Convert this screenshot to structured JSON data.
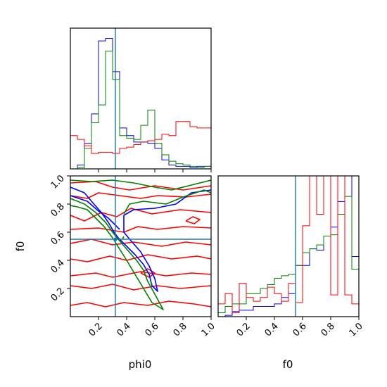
{
  "chart_data": {
    "type": "corner",
    "parameters": [
      "phi0",
      "f0"
    ],
    "axis_labels": {
      "x_left": "phi0",
      "x_right": "f0",
      "y_left": "f0"
    },
    "truths": {
      "phi0": 0.32,
      "f0": 0.55
    },
    "truth_color": "#1f77b4",
    "ticks": {
      "phi0": [
        "0.2",
        "0.4",
        "0.6",
        "0.8",
        "1.0"
      ],
      "f0": [
        "0.2",
        "0.4",
        "0.6",
        "0.8",
        "1.0"
      ]
    },
    "series_colors": [
      "#0000ff",
      "#008000",
      "#ff0000"
    ],
    "hist_phi0": {
      "bins": [
        0.0,
        0.05,
        0.1,
        0.15,
        0.2,
        0.25,
        0.3,
        0.35,
        0.4,
        0.45,
        0.5,
        0.55,
        0.6,
        0.65,
        0.7,
        0.75,
        0.8,
        0.85,
        0.9,
        0.95,
        1.0
      ],
      "series": [
        {
          "color": "#0000ff",
          "values": [
            0.0,
            0.03,
            0.2,
            0.43,
            1.0,
            1.02,
            0.76,
            0.32,
            0.26,
            0.21,
            0.21,
            0.2,
            0.16,
            0.07,
            0.03,
            0.02,
            0.02,
            0.01,
            0.02,
            0.02
          ]
        },
        {
          "color": "#008000",
          "values": [
            0.0,
            0.01,
            0.16,
            0.36,
            0.5,
            0.92,
            0.7,
            0.26,
            0.24,
            0.23,
            0.34,
            0.46,
            0.2,
            0.11,
            0.06,
            0.04,
            0.03,
            0.02,
            0.01,
            0.02
          ]
        },
        {
          "color": "#ff0000",
          "values": [
            0.26,
            0.23,
            0.18,
            0.12,
            0.13,
            0.13,
            0.12,
            0.16,
            0.17,
            0.19,
            0.21,
            0.22,
            0.23,
            0.27,
            0.26,
            0.37,
            0.37,
            0.33,
            0.32,
            0.32
          ]
        }
      ]
    },
    "hist_f0": {
      "bins": [
        0.0,
        0.05,
        0.1,
        0.15,
        0.2,
        0.25,
        0.3,
        0.35,
        0.4,
        0.45,
        0.5,
        0.55,
        0.6,
        0.65,
        0.7,
        0.75,
        0.8,
        0.85,
        0.9,
        0.95,
        1.0
      ],
      "series": [
        {
          "color": "#0000ff",
          "values": [
            0.0,
            0.01,
            0.04,
            0.05,
            0.05,
            0.08,
            0.08,
            0.08,
            0.1,
            0.15,
            0.18,
            0.4,
            0.4,
            0.53,
            0.52,
            0.63,
            0.7,
            0.9,
            1.1,
            0.47
          ]
        },
        {
          "color": "#008000",
          "values": [
            0.03,
            0.08,
            0.1,
            0.1,
            0.18,
            0.18,
            0.22,
            0.25,
            0.3,
            0.32,
            0.33,
            0.4,
            0.5,
            0.53,
            0.56,
            0.63,
            0.64,
            0.8,
            0.94,
            0.37
          ]
        },
        {
          "color": "#ff0000",
          "values": [
            0.1,
            0.18,
            0.03,
            0.26,
            0.15,
            0.12,
            0.15,
            0.23,
            0.18,
            0.12,
            0.26,
            0.11,
            0.71,
            1.1,
            0.8,
            1.2,
            0.17,
            1.2,
            0.17,
            0.1
          ]
        }
      ]
    },
    "scatter_2d": {
      "x": "phi0",
      "y": "f0",
      "xlim": [
        0.0,
        1.0
      ],
      "ylim": [
        0.0,
        1.0
      ],
      "contours": [
        {
          "color": "#ff0000",
          "paths": [
            [
              [
                0.0,
                0.95
              ],
              [
                0.18,
                0.96
              ],
              [
                0.3,
                0.92
              ],
              [
                0.42,
                0.9
              ],
              [
                0.6,
                0.93
              ],
              [
                0.8,
                0.9
              ],
              [
                1.0,
                0.93
              ]
            ],
            [
              [
                0.0,
                0.86
              ],
              [
                0.12,
                0.84
              ],
              [
                0.2,
                0.88
              ],
              [
                0.35,
                0.86
              ],
              [
                0.5,
                0.84
              ],
              [
                0.62,
                0.86
              ],
              [
                0.82,
                0.85
              ],
              [
                1.0,
                0.87
              ]
            ],
            [
              [
                0.0,
                0.72
              ],
              [
                0.1,
                0.68
              ],
              [
                0.22,
                0.74
              ],
              [
                0.33,
                0.71
              ],
              [
                0.43,
                0.77
              ],
              [
                0.58,
                0.73
              ],
              [
                0.78,
                0.76
              ],
              [
                1.0,
                0.74
              ]
            ],
            [
              [
                0.0,
                0.62
              ],
              [
                0.2,
                0.63
              ],
              [
                0.38,
                0.6
              ],
              [
                0.48,
                0.64
              ],
              [
                0.62,
                0.62
              ],
              [
                0.8,
                0.64
              ],
              [
                1.0,
                0.63
              ]
            ],
            [
              [
                0.0,
                0.52
              ],
              [
                0.15,
                0.55
              ],
              [
                0.3,
                0.51
              ],
              [
                0.45,
                0.53
              ],
              [
                0.65,
                0.5
              ],
              [
                0.82,
                0.53
              ],
              [
                1.0,
                0.51
              ]
            ],
            [
              [
                0.0,
                0.41
              ],
              [
                0.12,
                0.39
              ],
              [
                0.28,
                0.43
              ],
              [
                0.4,
                0.4
              ],
              [
                0.55,
                0.44
              ],
              [
                0.72,
                0.41
              ],
              [
                0.9,
                0.43
              ],
              [
                1.0,
                0.41
              ]
            ],
            [
              [
                0.0,
                0.29
              ],
              [
                0.18,
                0.31
              ],
              [
                0.3,
                0.28
              ],
              [
                0.5,
                0.32
              ],
              [
                0.68,
                0.29
              ],
              [
                0.86,
                0.31
              ],
              [
                1.0,
                0.3
              ]
            ],
            [
              [
                0.0,
                0.22
              ],
              [
                0.15,
                0.2
              ],
              [
                0.3,
                0.23
              ],
              [
                0.45,
                0.19
              ],
              [
                0.62,
                0.22
              ],
              [
                0.78,
                0.2
              ],
              [
                1.0,
                0.22
              ]
            ],
            [
              [
                0.0,
                0.08
              ],
              [
                0.12,
                0.1
              ],
              [
                0.25,
                0.07
              ],
              [
                0.38,
                0.1
              ],
              [
                0.55,
                0.08
              ],
              [
                0.7,
                0.11
              ],
              [
                0.88,
                0.09
              ],
              [
                1.0,
                0.07
              ]
            ],
            [
              [
                0.5,
                0.31
              ],
              [
                0.56,
                0.28
              ],
              [
                0.6,
                0.31
              ],
              [
                0.55,
                0.34
              ],
              [
                0.5,
                0.31
              ]
            ],
            [
              [
                0.82,
                0.68
              ],
              [
                0.88,
                0.66
              ],
              [
                0.92,
                0.69
              ],
              [
                0.87,
                0.71
              ],
              [
                0.82,
                0.68
              ]
            ]
          ]
        },
        {
          "color": "#0000ff",
          "paths": [
            [
              [
                0.0,
                0.92
              ],
              [
                0.1,
                0.88
              ],
              [
                0.15,
                0.82
              ],
              [
                0.22,
                0.74
              ],
              [
                0.27,
                0.67
              ],
              [
                0.31,
                0.6
              ],
              [
                0.34,
                0.56
              ],
              [
                0.4,
                0.5
              ],
              [
                0.46,
                0.44
              ],
              [
                0.52,
                0.37
              ],
              [
                0.56,
                0.3
              ],
              [
                0.58,
                0.22
              ],
              [
                0.62,
                0.18
              ],
              [
                0.6,
                0.27
              ],
              [
                0.56,
                0.36
              ],
              [
                0.5,
                0.46
              ],
              [
                0.43,
                0.54
              ],
              [
                0.38,
                0.6
              ],
              [
                0.38,
                0.72
              ],
              [
                0.45,
                0.76
              ],
              [
                0.6,
                0.77
              ],
              [
                0.75,
                0.8
              ],
              [
                0.86,
                0.88
              ],
              [
                1.0,
                0.9
              ]
            ],
            [
              [
                0.0,
                0.86
              ],
              [
                0.12,
                0.82
              ],
              [
                0.2,
                0.75
              ],
              [
                0.27,
                0.7
              ],
              [
                0.35,
                0.62
              ]
            ]
          ]
        },
        {
          "color": "#008000",
          "paths": [
            [
              [
                0.0,
                0.97
              ],
              [
                0.15,
                0.96
              ],
              [
                0.3,
                0.97
              ],
              [
                0.45,
                0.95
              ],
              [
                0.6,
                0.92
              ],
              [
                0.72,
                0.9
              ],
              [
                0.88,
                0.94
              ],
              [
                1.0,
                0.97
              ]
            ],
            [
              [
                0.0,
                0.84
              ],
              [
                0.1,
                0.8
              ],
              [
                0.18,
                0.74
              ],
              [
                0.25,
                0.67
              ],
              [
                0.3,
                0.6
              ],
              [
                0.34,
                0.55
              ],
              [
                0.4,
                0.48
              ],
              [
                0.47,
                0.4
              ],
              [
                0.52,
                0.33
              ],
              [
                0.55,
                0.25
              ],
              [
                0.6,
                0.16
              ],
              [
                0.66,
                0.05
              ],
              [
                0.58,
                0.1
              ],
              [
                0.52,
                0.2
              ],
              [
                0.46,
                0.3
              ],
              [
                0.4,
                0.4
              ],
              [
                0.35,
                0.48
              ],
              [
                0.3,
                0.56
              ],
              [
                0.24,
                0.64
              ],
              [
                0.18,
                0.7
              ],
              [
                0.12,
                0.76
              ],
              [
                0.05,
                0.78
              ],
              [
                0.0,
                0.79
              ]
            ],
            [
              [
                0.38,
                0.73
              ],
              [
                0.42,
                0.8
              ],
              [
                0.52,
                0.82
              ],
              [
                0.68,
                0.8
              ],
              [
                0.8,
                0.85
              ],
              [
                0.95,
                0.9
              ],
              [
                1.0,
                0.88
              ]
            ],
            [
              [
                0.57,
                0.25
              ],
              [
                0.58,
                0.23
              ]
            ],
            [
              [
                0.37,
                0.55
              ],
              [
                0.38,
                0.57
              ]
            ]
          ]
        }
      ]
    }
  }
}
